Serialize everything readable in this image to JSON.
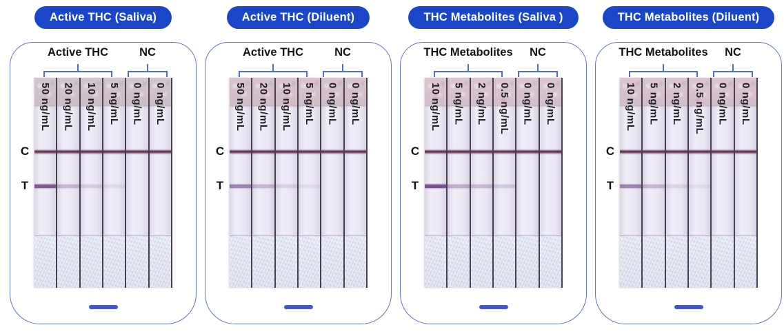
{
  "colors": {
    "header_pill_bg": "#1c46ca",
    "header_pill_text": "#ffffff",
    "card_border": "#5d73d6",
    "bracket_blue": "#4f6bd6",
    "scale_bar_blue": "#4355d6",
    "control_line": "#55203f",
    "test_line": "#6d4184"
  },
  "panels": [
    {
      "title": "Active THC (Saliva)",
      "sample_group_label": "Active THC",
      "control_group_label": "NC",
      "control_line_label": "C",
      "test_line_label": "T",
      "strips": [
        {
          "concentration": "50 ng/mL",
          "t_line_intensity": 0.85
        },
        {
          "concentration": "20 ng/mL",
          "t_line_intensity": 0.3
        },
        {
          "concentration": "10 ng/mL",
          "t_line_intensity": 0.16
        },
        {
          "concentration": "5 ng/mL",
          "t_line_intensity": 0.09
        },
        {
          "concentration": "0 ng/mL",
          "t_line_intensity": 0
        },
        {
          "concentration": "0 ng/mL",
          "t_line_intensity": 0
        }
      ]
    },
    {
      "title": "Active THC (Diluent)",
      "sample_group_label": "Active THC",
      "control_group_label": "NC",
      "control_line_label": "C",
      "test_line_label": "T",
      "strips": [
        {
          "concentration": "50 ng/mL",
          "t_line_intensity": 0.6
        },
        {
          "concentration": "20 ng/mL",
          "t_line_intensity": 0.3
        },
        {
          "concentration": "10 ng/mL",
          "t_line_intensity": 0.15
        },
        {
          "concentration": "5 ng/mL",
          "t_line_intensity": 0.08
        },
        {
          "concentration": "0 ng/mL",
          "t_line_intensity": 0
        },
        {
          "concentration": "0 ng/mL",
          "t_line_intensity": 0
        }
      ]
    },
    {
      "title": "THC Metabolites (Saliva )",
      "sample_group_label": "THC Metabolites",
      "control_group_label": "NC",
      "control_line_label": "C",
      "test_line_label": "T",
      "strips": [
        {
          "concentration": "10 ng/mL",
          "t_line_intensity": 0.9
        },
        {
          "concentration": "5 ng/mL",
          "t_line_intensity": 0.35
        },
        {
          "concentration": "2 ng/mL",
          "t_line_intensity": 0.28
        },
        {
          "concentration": "0.5 ng/mL",
          "t_line_intensity": 0.18
        },
        {
          "concentration": "0 ng/mL",
          "t_line_intensity": 0
        },
        {
          "concentration": "0 ng/mL",
          "t_line_intensity": 0
        }
      ]
    },
    {
      "title": "THC Metabolites (Diluent)",
      "sample_group_label": "THC Metabolites",
      "control_group_label": "NC",
      "control_line_label": "C",
      "test_line_label": "T",
      "strips": [
        {
          "concentration": "10 ng/mL",
          "t_line_intensity": 0.6
        },
        {
          "concentration": "5 ng/mL",
          "t_line_intensity": 0.3
        },
        {
          "concentration": "2 ng/mL",
          "t_line_intensity": 0.13
        },
        {
          "concentration": "0.5 ng/mL",
          "t_line_intensity": 0.08
        },
        {
          "concentration": "0 ng/mL",
          "t_line_intensity": 0
        },
        {
          "concentration": "0 ng/mL",
          "t_line_intensity": 0
        }
      ]
    }
  ]
}
